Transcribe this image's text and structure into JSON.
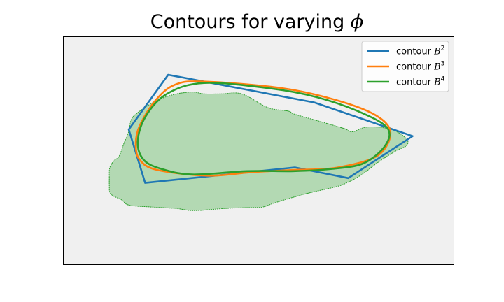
{
  "chart_data": {
    "type": "line",
    "title": "Contours for varying",
    "title_symbol": "ϕ",
    "xlabel": "",
    "ylabel": "",
    "xlim": [
      0,
      1
    ],
    "ylim": [
      0,
      1
    ],
    "ticks_visible": false,
    "grid": false,
    "legend": "top-right",
    "background_color": "#f0f0f0",
    "filled_region": {
      "fill_color": "#b3d9b3",
      "edge_color": "#2ca02c",
      "points": [
        [
          0.168,
          0.74
        ],
        [
          0.226,
          0.748
        ],
        [
          0.29,
          0.755
        ],
        [
          0.336,
          0.764
        ],
        [
          0.416,
          0.754
        ],
        [
          0.495,
          0.75
        ],
        [
          0.513,
          0.747
        ],
        [
          0.55,
          0.725
        ],
        [
          0.625,
          0.688
        ],
        [
          0.696,
          0.66
        ],
        [
          0.727,
          0.641
        ],
        [
          0.764,
          0.606
        ],
        [
          0.806,
          0.552
        ],
        [
          0.852,
          0.501
        ],
        [
          0.878,
          0.48
        ],
        [
          0.882,
          0.455
        ],
        [
          0.862,
          0.424
        ],
        [
          0.831,
          0.402
        ],
        [
          0.777,
          0.396
        ],
        [
          0.741,
          0.417
        ],
        [
          0.72,
          0.403
        ],
        [
          0.663,
          0.374
        ],
        [
          0.593,
          0.34
        ],
        [
          0.576,
          0.326
        ],
        [
          0.523,
          0.31
        ],
        [
          0.457,
          0.25
        ],
        [
          0.405,
          0.25
        ],
        [
          0.36,
          0.25
        ],
        [
          0.333,
          0.242
        ],
        [
          0.299,
          0.247
        ],
        [
          0.27,
          0.259
        ],
        [
          0.246,
          0.274
        ],
        [
          0.221,
          0.296
        ],
        [
          0.196,
          0.325
        ],
        [
          0.174,
          0.361
        ],
        [
          0.167,
          0.415
        ],
        [
          0.155,
          0.466
        ],
        [
          0.142,
          0.525
        ],
        [
          0.128,
          0.546
        ],
        [
          0.118,
          0.578
        ],
        [
          0.117,
          0.625
        ],
        [
          0.117,
          0.657
        ],
        [
          0.118,
          0.681
        ],
        [
          0.126,
          0.698
        ],
        [
          0.149,
          0.717
        ]
      ]
    },
    "series": [
      {
        "name": "contour B",
        "exponent": "2",
        "color": "#1f77b4",
        "closed": true,
        "x": [
          0.268,
          0.643,
          0.895,
          0.73,
          0.593,
          0.209,
          0.167
        ],
        "y": [
          0.166,
          0.288,
          0.436,
          0.621,
          0.574,
          0.642,
          0.407
        ]
      },
      {
        "name": "contour B",
        "exponent": "3",
        "color": "#ff7f0e",
        "closed": true,
        "x": [
          0.36,
          0.56,
          0.7,
          0.8,
          0.838,
          0.805,
          0.7,
          0.59,
          0.48,
          0.37,
          0.24,
          0.195,
          0.185,
          0.195,
          0.235,
          0.285
        ],
        "y": [
          0.196,
          0.225,
          0.278,
          0.344,
          0.42,
          0.522,
          0.575,
          0.585,
          0.595,
          0.61,
          0.585,
          0.54,
          0.47,
          0.39,
          0.28,
          0.21
        ]
      },
      {
        "name": "contour B",
        "exponent": "4",
        "color": "#2ca02c",
        "closed": true,
        "x": [
          0.36,
          0.53,
          0.65,
          0.76,
          0.83,
          0.825,
          0.77,
          0.69,
          0.59,
          0.47,
          0.33,
          0.25,
          0.205,
          0.19,
          0.21,
          0.265
        ],
        "y": [
          0.202,
          0.226,
          0.265,
          0.33,
          0.4,
          0.477,
          0.555,
          0.58,
          0.59,
          0.59,
          0.605,
          0.58,
          0.54,
          0.46,
          0.35,
          0.25
        ]
      }
    ]
  }
}
